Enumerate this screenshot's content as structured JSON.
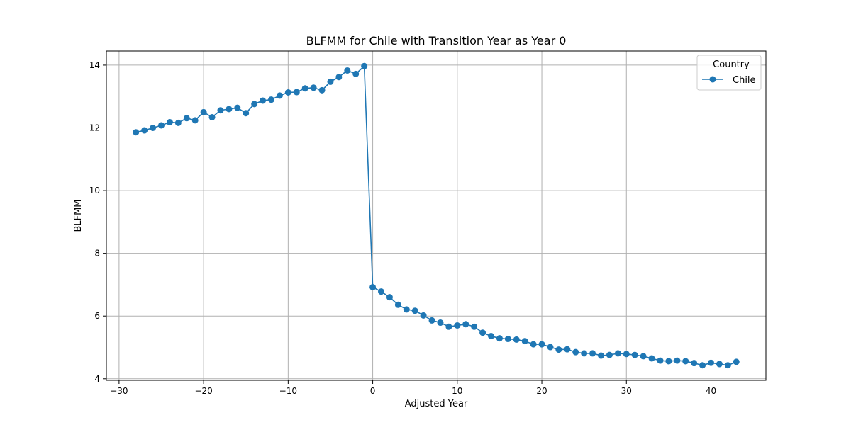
{
  "chart_data": {
    "type": "line",
    "title": "BLFMM for Chile with Transition Year as Year 0",
    "xlabel": "Adjusted Year",
    "ylabel": "BLFMM",
    "xlim": [
      -31.5,
      46.5
    ],
    "ylim": [
      3.95,
      14.45
    ],
    "xticks": [
      -30,
      -20,
      -10,
      0,
      10,
      20,
      30,
      40
    ],
    "yticks": [
      4,
      6,
      8,
      10,
      12,
      14
    ],
    "grid": true,
    "legend": {
      "title": "Country",
      "placement": "top-right"
    },
    "series": [
      {
        "name": "Chile",
        "color": "#1f77b4",
        "marker": "circle",
        "x": [
          -28,
          -27,
          -26,
          -25,
          -24,
          -23,
          -22,
          -21,
          -20,
          -19,
          -18,
          -17,
          -16,
          -15,
          -14,
          -13,
          -12,
          -11,
          -10,
          -9,
          -8,
          -7,
          -6,
          -5,
          -4,
          -3,
          -2,
          -1,
          0,
          1,
          2,
          3,
          4,
          5,
          6,
          7,
          8,
          9,
          10,
          11,
          12,
          13,
          14,
          15,
          16,
          17,
          18,
          19,
          20,
          21,
          22,
          23,
          24,
          25,
          26,
          27,
          28,
          29,
          30,
          31,
          32,
          33,
          34,
          35,
          36,
          37,
          38,
          39,
          40,
          41,
          42,
          43
        ],
        "y": [
          11.86,
          11.92,
          12.0,
          12.08,
          12.18,
          12.16,
          12.31,
          12.24,
          12.5,
          12.34,
          12.56,
          12.6,
          12.64,
          12.47,
          12.76,
          12.87,
          12.9,
          13.03,
          13.13,
          13.14,
          13.26,
          13.28,
          13.2,
          13.47,
          13.62,
          13.83,
          13.72,
          13.97,
          6.92,
          6.78,
          6.6,
          6.36,
          6.21,
          6.17,
          6.02,
          5.86,
          5.79,
          5.66,
          5.7,
          5.74,
          5.66,
          5.47,
          5.36,
          5.29,
          5.27,
          5.25,
          5.2,
          5.1,
          5.1,
          5.01,
          4.93,
          4.94,
          4.85,
          4.81,
          4.81,
          4.74,
          4.76,
          4.81,
          4.79,
          4.76,
          4.72,
          4.65,
          4.58,
          4.56,
          4.58,
          4.56,
          4.5,
          4.43,
          4.51,
          4.47,
          4.43,
          4.54
        ]
      }
    ]
  }
}
